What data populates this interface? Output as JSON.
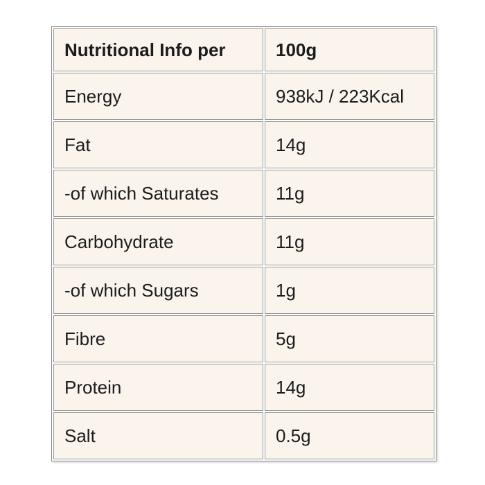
{
  "table": {
    "header": {
      "label": "Nutritional Info per",
      "value": "100g"
    },
    "rows": [
      {
        "label": "Energy",
        "value": "938kJ / 223Kcal"
      },
      {
        "label": "Fat",
        "value": "14g"
      },
      {
        "label": "-of which Saturates",
        "value": "11g"
      },
      {
        "label": "Carbohydrate",
        "value": "11g"
      },
      {
        "label": "-of which Sugars",
        "value": "1g"
      },
      {
        "label": "Fibre",
        "value": "5g"
      },
      {
        "label": "Protein",
        "value": "14g"
      },
      {
        "label": "Salt",
        "value": "0.5g"
      }
    ],
    "colors": {
      "page_background": "#ffffff",
      "cell_background": "#faf4ed",
      "border": "#979797",
      "outer_border": "#8a8a8a",
      "text": "#1c1c1c"
    }
  }
}
